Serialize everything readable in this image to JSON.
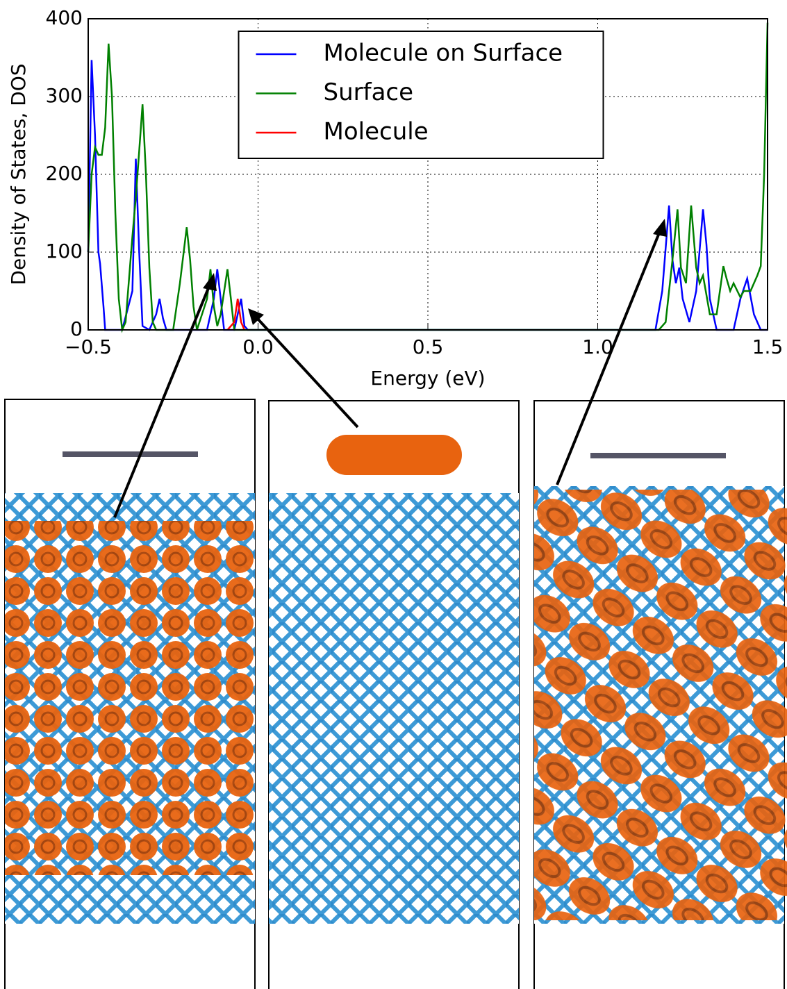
{
  "chart_data": {
    "type": "line",
    "x_label": "Energy (eV)",
    "y_label": "Density of States, DOS",
    "xlim": [
      -0.5,
      1.5
    ],
    "ylim": [
      0,
      400
    ],
    "xticks": [
      {
        "value": -0.5,
        "label": "−0.5"
      },
      {
        "value": 0,
        "label": "0.0"
      },
      {
        "value": 0.5,
        "label": "0.5"
      },
      {
        "value": 1,
        "label": "1.0"
      },
      {
        "value": 1.5,
        "label": "1.5"
      }
    ],
    "yticks": [
      0,
      100,
      200,
      300,
      400
    ],
    "grid": true,
    "legend": "upper center",
    "series": [
      {
        "name": "Molecule on Surface",
        "color": "#0000ff",
        "x": [
          -0.5,
          -0.49,
          -0.48,
          -0.47,
          -0.465,
          -0.455,
          -0.45,
          -0.4,
          -0.37,
          -0.36,
          -0.35,
          -0.34,
          -0.32,
          -0.3,
          -0.29,
          -0.28,
          -0.27,
          -0.15,
          -0.13,
          -0.12,
          -0.11,
          -0.1,
          -0.07,
          -0.05,
          -0.04,
          -0.03,
          1.17,
          1.19,
          1.21,
          1.22,
          1.23,
          1.24,
          1.25,
          1.27,
          1.29,
          1.31,
          1.32,
          1.33,
          1.35,
          1.4,
          1.42,
          1.44,
          1.46,
          1.48,
          1.5
        ],
        "values": [
          100,
          347,
          250,
          100,
          85,
          30,
          0,
          0,
          50,
          220,
          100,
          5,
          0,
          20,
          40,
          15,
          0,
          0,
          40,
          78,
          40,
          0,
          0,
          40,
          5,
          0,
          0,
          50,
          160,
          90,
          60,
          80,
          40,
          10,
          50,
          155,
          110,
          40,
          0,
          0,
          40,
          66,
          20,
          0,
          0
        ]
      },
      {
        "name": "Surface",
        "color": "#008000",
        "x": [
          -0.5,
          -0.49,
          -0.48,
          -0.47,
          -0.46,
          -0.45,
          -0.44,
          -0.43,
          -0.42,
          -0.41,
          -0.4,
          -0.39,
          -0.37,
          -0.36,
          -0.35,
          -0.34,
          -0.33,
          -0.32,
          -0.31,
          -0.3,
          -0.25,
          -0.23,
          -0.21,
          -0.2,
          -0.19,
          -0.18,
          -0.15,
          -0.14,
          -0.13,
          -0.12,
          -0.11,
          -0.09,
          -0.08,
          -0.07,
          1.18,
          1.2,
          1.22,
          1.235,
          1.245,
          1.26,
          1.275,
          1.29,
          1.3,
          1.31,
          1.33,
          1.35,
          1.37,
          1.38,
          1.39,
          1.4,
          1.42,
          1.43,
          1.45,
          1.47,
          1.48,
          1.49,
          1.5
        ],
        "values": [
          100,
          200,
          235,
          225,
          225,
          260,
          368,
          300,
          150,
          40,
          0,
          10,
          120,
          170,
          230,
          290,
          200,
          80,
          10,
          0,
          0,
          60,
          132,
          90,
          30,
          0,
          40,
          78,
          30,
          5,
          20,
          78,
          40,
          0,
          0,
          10,
          90,
          155,
          80,
          60,
          160,
          80,
          60,
          70,
          20,
          20,
          82,
          65,
          50,
          60,
          42,
          50,
          50,
          70,
          82,
          200,
          395
        ]
      },
      {
        "name": "Molecule",
        "color": "#ff0000",
        "x": [
          -0.09,
          -0.07,
          -0.06,
          -0.05,
          -0.04
        ],
        "values": [
          0,
          10,
          40,
          10,
          0
        ]
      }
    ]
  }
}
